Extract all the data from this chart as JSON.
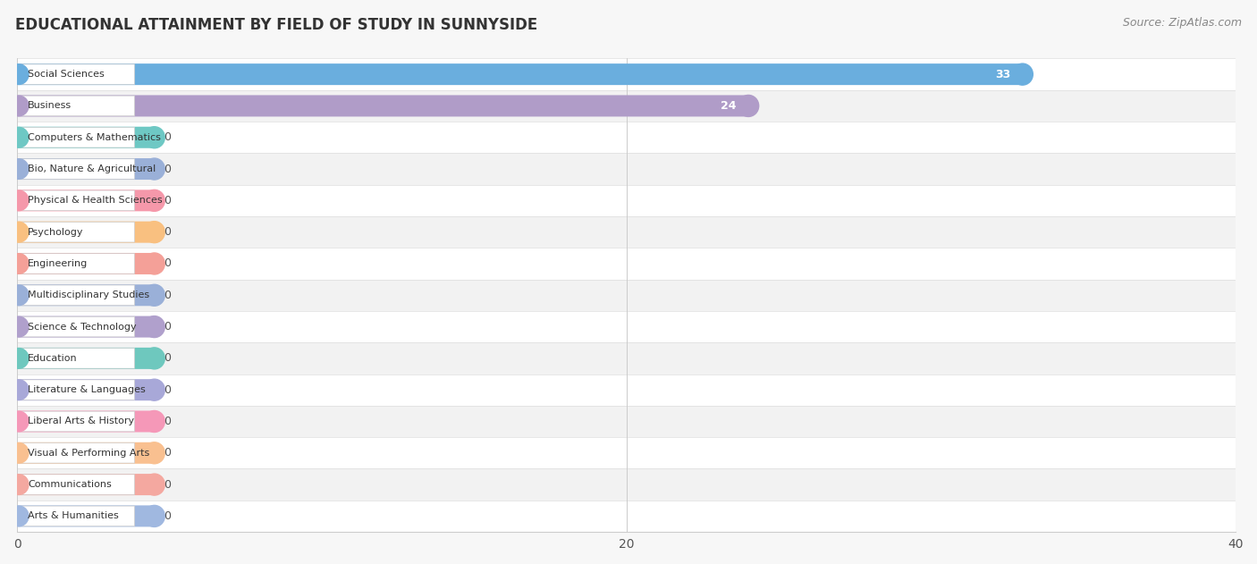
{
  "title": "EDUCATIONAL ATTAINMENT BY FIELD OF STUDY IN SUNNYSIDE",
  "source": "Source: ZipAtlas.com",
  "categories": [
    "Social Sciences",
    "Business",
    "Computers & Mathematics",
    "Bio, Nature & Agricultural",
    "Physical & Health Sciences",
    "Psychology",
    "Engineering",
    "Multidisciplinary Studies",
    "Science & Technology",
    "Education",
    "Literature & Languages",
    "Liberal Arts & History",
    "Visual & Performing Arts",
    "Communications",
    "Arts & Humanities"
  ],
  "values": [
    33,
    24,
    0,
    0,
    0,
    0,
    0,
    0,
    0,
    0,
    0,
    0,
    0,
    0,
    0
  ],
  "bar_colors": [
    "#6aaede",
    "#b09cc8",
    "#6ec8c4",
    "#9ab0d8",
    "#f598aa",
    "#f9c080",
    "#f4a098",
    "#9ab0d8",
    "#b0a0cc",
    "#6ec8be",
    "#a8a8d8",
    "#f598b8",
    "#f9c090",
    "#f4a8a0",
    "#a0b8e0"
  ],
  "xlim": [
    0,
    40
  ],
  "xticks": [
    0,
    20,
    40
  ],
  "background_color": "#f7f7f7",
  "row_colors": [
    "#ffffff",
    "#f2f2f2"
  ],
  "title_fontsize": 12,
  "source_fontsize": 9
}
